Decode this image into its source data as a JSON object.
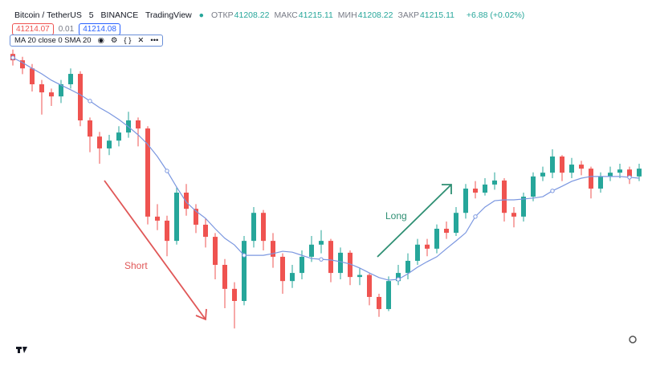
{
  "header": {
    "symbol": "Bitcoin / TetherUS",
    "interval": "5",
    "exchange": "BINANCE",
    "source": "TradingView",
    "stats": [
      {
        "label": "ОТКР",
        "value": "41208.22"
      },
      {
        "label": "МАКС",
        "value": "41215.11"
      },
      {
        "label": "МИН",
        "value": "41208.22"
      },
      {
        "label": "ЗАКР",
        "value": "41215.11"
      }
    ],
    "change": "+6.88 (+0.02%)",
    "bid": "41214.07",
    "spread": "0.01",
    "ask": "41214.08",
    "indicator": "MA 20 close 0 SMA 20"
  },
  "chart_data": {
    "type": "candlestick",
    "ylim": [
      0,
      100
    ],
    "up_color": "#26a69a",
    "down_color": "#ef5350",
    "open": [
      98,
      95.8,
      93,
      87.5,
      84.7,
      83.3,
      87.5,
      91.1,
      75,
      69.4,
      65.3,
      68,
      70.8,
      75,
      72.2,
      41.7,
      40.3,
      33.3,
      50,
      44.4,
      38.9,
      34.7,
      25,
      16.7,
      12.5,
      33.3,
      43,
      33.3,
      27.8,
      19.4,
      22.2,
      27.8,
      32,
      33.3,
      22.2,
      29.2,
      20.8,
      21.5,
      13.9,
      9.7,
      19.4,
      22.2,
      26.4,
      32,
      30.6,
      37.5,
      36.1,
      43,
      51.4,
      50,
      52.8,
      54.2,
      43,
      41.7,
      48.6,
      55.6,
      56.9,
      62.5,
      56.9,
      59.7,
      58.3,
      51.4,
      55.6,
      56.9,
      58,
      55.6
    ],
    "high": [
      99.5,
      97,
      94.5,
      89,
      86,
      89,
      93,
      92,
      76,
      71,
      70,
      73,
      78,
      76,
      73,
      46,
      42,
      52,
      53,
      46,
      41,
      36,
      27,
      19,
      35,
      45,
      44,
      36,
      29,
      25,
      30,
      35,
      37,
      34,
      31,
      30,
      24,
      22,
      15,
      21,
      25,
      29,
      34,
      34,
      39,
      40,
      45,
      53,
      54,
      55,
      57,
      55,
      45,
      50,
      57,
      59,
      65,
      63,
      62,
      61,
      59,
      57,
      59,
      60,
      59,
      60
    ],
    "low": [
      94,
      91,
      85,
      77,
      80,
      81,
      86,
      73,
      64,
      60,
      63,
      66,
      69,
      66,
      39,
      37,
      28,
      32,
      42,
      36,
      31,
      20,
      10,
      3,
      11,
      31,
      30,
      24,
      15,
      17,
      20,
      26,
      29,
      19,
      20,
      18,
      18,
      11,
      7,
      9,
      18,
      20,
      25,
      28,
      29,
      34,
      35,
      41,
      48,
      49,
      51,
      40,
      38,
      40,
      47,
      54,
      55,
      54,
      55,
      56,
      48,
      50,
      54,
      55,
      53,
      54
    ],
    "close": [
      95.8,
      93,
      87.5,
      84.7,
      83.3,
      87.5,
      91.1,
      75,
      69.4,
      65.3,
      68,
      70.8,
      75,
      72.2,
      41.7,
      40.3,
      33.3,
      50,
      44.4,
      38.9,
      34.7,
      25,
      16.7,
      12.5,
      33.3,
      43,
      33.3,
      27.8,
      19.4,
      22.2,
      27.8,
      32,
      33.3,
      22.2,
      29.2,
      20.8,
      21.5,
      13.9,
      9.7,
      19.4,
      22.2,
      26.4,
      32,
      30.6,
      37.5,
      36.1,
      43,
      51.4,
      50,
      52.8,
      54.2,
      43,
      41.7,
      48.6,
      55.6,
      56.9,
      62.5,
      56.9,
      59.7,
      58.3,
      51.4,
      55.6,
      56.9,
      58,
      55.6,
      58.3
    ],
    "ma": {
      "color": "#7b97e0",
      "values": [
        96.7,
        95,
        93,
        91.1,
        88.9,
        87.2,
        85.6,
        83.9,
        81.7,
        79.4,
        77.5,
        75.3,
        72.8,
        70,
        66.7,
        62.5,
        57.5,
        51.9,
        46.7,
        43.6,
        41.1,
        37.5,
        34.2,
        31.9,
        28.3,
        28.3,
        28.3,
        28.9,
        29.7,
        29.4,
        28.3,
        27.2,
        26.9,
        26.7,
        26.1,
        25.3,
        23.9,
        22.2,
        20.6,
        19.7,
        20,
        21.9,
        24.2,
        26.1,
        27.8,
        30.6,
        33.3,
        36.1,
        41.7,
        45,
        47.2,
        47.5,
        47.5,
        47.8,
        48.1,
        48.6,
        50.6,
        52.2,
        53.9,
        55,
        55.6,
        55.6,
        55.6,
        55.6,
        55.3,
        55
      ]
    },
    "annotations": [
      {
        "text": "Short",
        "color": "#e05757"
      },
      {
        "text": "Long",
        "color": "#2e8f73"
      }
    ]
  }
}
